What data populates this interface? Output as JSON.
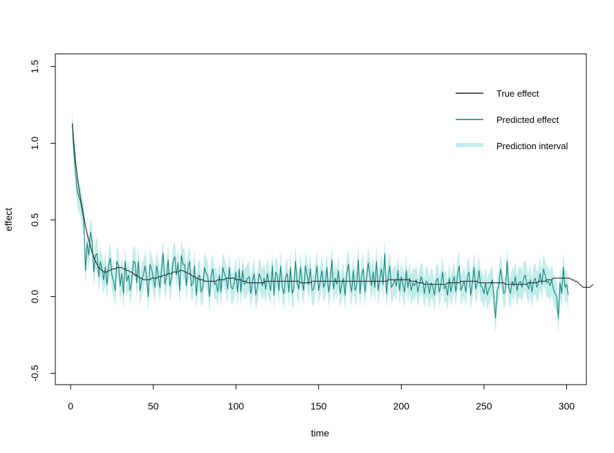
{
  "chart_data": {
    "type": "line",
    "xlabel": "time",
    "ylabel": "effect",
    "xlim": [
      1,
      300
    ],
    "ylim": [
      -0.5,
      1.5
    ],
    "xticks": [
      0,
      50,
      100,
      150,
      200,
      250,
      300
    ],
    "xtick_labels": [
      "0",
      "50",
      "100",
      "150",
      "200",
      "250",
      "300"
    ],
    "yticks": [
      -0.5,
      0.0,
      0.5,
      1.0,
      1.5
    ],
    "ytick_labels": [
      "-0.5",
      "0.0",
      "0.5",
      "1.0",
      "1.5"
    ],
    "grid": false,
    "legend_position": "top-right",
    "colors": {
      "true_effect": "#222222",
      "predicted_effect": "#0f8478",
      "prediction_interval": "#c4ecea"
    },
    "series": [
      {
        "name": "True effect",
        "x_start": 1,
        "step": 1,
        "values": [
          1.13,
          1.0,
          0.88,
          0.79,
          0.71,
          0.64,
          0.58,
          0.52,
          0.46,
          0.41,
          0.37,
          0.33,
          0.29,
          0.26,
          0.23,
          0.21,
          0.19,
          0.18,
          0.17,
          0.16,
          0.16,
          0.16,
          0.17,
          0.17,
          0.18,
          0.18,
          0.18,
          0.19,
          0.19,
          0.19,
          0.19,
          0.18,
          0.18,
          0.17,
          0.17,
          0.16,
          0.16,
          0.15,
          0.14,
          0.14,
          0.13,
          0.12,
          0.12,
          0.11,
          0.11,
          0.11,
          0.11,
          0.11,
          0.12,
          0.12,
          0.12,
          0.12,
          0.13,
          0.13,
          0.13,
          0.14,
          0.14,
          0.14,
          0.15,
          0.15,
          0.15,
          0.16,
          0.16,
          0.16,
          0.16,
          0.17,
          0.17,
          0.17,
          0.16,
          0.16,
          0.15,
          0.15,
          0.14,
          0.13,
          0.13,
          0.12,
          0.12,
          0.11,
          0.11,
          0.11,
          0.1,
          0.1,
          0.1,
          0.1,
          0.1,
          0.1,
          0.1,
          0.1,
          0.11,
          0.11,
          0.11,
          0.11,
          0.11,
          0.12,
          0.12,
          0.12,
          0.12,
          0.12,
          0.12,
          0.11,
          0.11,
          0.11,
          0.11,
          0.1,
          0.1,
          0.1,
          0.09,
          0.09,
          0.09,
          0.09,
          0.09,
          0.09,
          0.09,
          0.09,
          0.09,
          0.09,
          0.09,
          0.1,
          0.1,
          0.1,
          0.1,
          0.1,
          0.1,
          0.1,
          0.1,
          0.1,
          0.1,
          0.1,
          0.1,
          0.1,
          0.1,
          0.1,
          0.1,
          0.1,
          0.1,
          0.1,
          0.1,
          0.1,
          0.09,
          0.09,
          0.09,
          0.09,
          0.09,
          0.09,
          0.09,
          0.1,
          0.1,
          0.1,
          0.1,
          0.1,
          0.1,
          0.1,
          0.1,
          0.1,
          0.1,
          0.1,
          0.1,
          0.1,
          0.1,
          0.1,
          0.1,
          0.1,
          0.1,
          0.1,
          0.1,
          0.1,
          0.1,
          0.1,
          0.1,
          0.1,
          0.1,
          0.1,
          0.1,
          0.1,
          0.1,
          0.1,
          0.1,
          0.1,
          0.1,
          0.1,
          0.1,
          0.1,
          0.1,
          0.1,
          0.1,
          0.1,
          0.1,
          0.1,
          0.1,
          0.1,
          0.1,
          0.11,
          0.11,
          0.11,
          0.11,
          0.11,
          0.11,
          0.11,
          0.11,
          0.11,
          0.11,
          0.11,
          0.11,
          0.11,
          0.11,
          0.1,
          0.1,
          0.1,
          0.1,
          0.09,
          0.09,
          0.09,
          0.09,
          0.08,
          0.08,
          0.08,
          0.08,
          0.08,
          0.08,
          0.08,
          0.08,
          0.08,
          0.08,
          0.08,
          0.08,
          0.08,
          0.08,
          0.09,
          0.09,
          0.09,
          0.09,
          0.09,
          0.09,
          0.09,
          0.09,
          0.1,
          0.1,
          0.1,
          0.1,
          0.1,
          0.1,
          0.1,
          0.1,
          0.1,
          0.1,
          0.1,
          0.09,
          0.09,
          0.09,
          0.09,
          0.09,
          0.09,
          0.09,
          0.09,
          0.09,
          0.09,
          0.09,
          0.09,
          0.09,
          0.09,
          0.09,
          0.09,
          0.08,
          0.08,
          0.08,
          0.08,
          0.08,
          0.08,
          0.08,
          0.08,
          0.08,
          0.08,
          0.08,
          0.08,
          0.08,
          0.08,
          0.09,
          0.09,
          0.09,
          0.09,
          0.09,
          0.09,
          0.1,
          0.1,
          0.1,
          0.1,
          0.1,
          0.11,
          0.11,
          0.11,
          0.11,
          0.12,
          0.12,
          0.12,
          0.12,
          0.12,
          0.12,
          0.12,
          0.12,
          0.12,
          0.12,
          0.12,
          0.11,
          0.11,
          0.1,
          0.1,
          0.09,
          0.08,
          0.07,
          0.06,
          0.06,
          0.06,
          0.06,
          0.06,
          0.07,
          0.08
        ]
      },
      {
        "name": "Predicted effect",
        "x_start": 1,
        "step": 1,
        "values": [
          1.13,
          0.94,
          0.81,
          0.69,
          0.65,
          0.62,
          0.56,
          0.5,
          0.17,
          0.35,
          0.27,
          0.42,
          0.36,
          0.16,
          0.27,
          0.28,
          0.13,
          0.23,
          0.18,
          0.11,
          0.19,
          0.08,
          0.2,
          0.25,
          0.14,
          0.1,
          0.04,
          0.23,
          0.2,
          0.07,
          0.15,
          0.02,
          0.23,
          0.1,
          0.14,
          0.04,
          0.11,
          0.23,
          0.22,
          0.09,
          0.23,
          0.04,
          0.11,
          0.14,
          0.2,
          0.13,
          0.0,
          0.21,
          0.18,
          0.12,
          0.06,
          0.2,
          0.14,
          0.06,
          0.18,
          0.28,
          0.08,
          0.13,
          0.24,
          0.07,
          0.12,
          0.23,
          0.26,
          0.14,
          0.22,
          0.04,
          0.27,
          0.21,
          0.21,
          0.07,
          0.19,
          0.23,
          0.07,
          0.09,
          0.2,
          0.01,
          0.13,
          0.14,
          0.03,
          0.06,
          0.19,
          0.15,
          0.13,
          0.0,
          0.14,
          0.18,
          0.08,
          0.09,
          0.03,
          0.14,
          0.03,
          0.19,
          0.15,
          0.12,
          0.05,
          0.19,
          0.06,
          0.05,
          0.09,
          0.16,
          0.03,
          0.18,
          0.03,
          0.17,
          0.08,
          0.09,
          0.12,
          0.13,
          0.02,
          0.1,
          0.15,
          0.01,
          0.06,
          0.15,
          0.12,
          0.07,
          0.12,
          0.05,
          0.15,
          0.09,
          0.04,
          0.2,
          0.01,
          0.16,
          0.14,
          0.04,
          0.2,
          0.06,
          0.02,
          0.12,
          0.15,
          0.03,
          0.19,
          0.02,
          0.05,
          0.23,
          0.09,
          0.05,
          0.19,
          0.1,
          0.04,
          0.2,
          0.14,
          0.08,
          0.18,
          0.04,
          0.05,
          0.11,
          0.2,
          0.04,
          0.1,
          0.17,
          0.06,
          0.09,
          0.19,
          0.03,
          0.09,
          0.24,
          0.05,
          0.12,
          0.08,
          0.17,
          0.02,
          0.08,
          0.12,
          0.01,
          0.15,
          0.21,
          0.09,
          0.03,
          0.17,
          0.04,
          0.07,
          0.24,
          0.02,
          0.14,
          0.18,
          0.03,
          0.12,
          0.22,
          0.14,
          0.07,
          0.16,
          0.06,
          0.23,
          0.04,
          0.12,
          0.18,
          0.08,
          0.28,
          0.02,
          0.12,
          0.2,
          0.06,
          0.08,
          0.11,
          0.07,
          0.17,
          0.04,
          0.13,
          0.08,
          0.03,
          0.17,
          0.06,
          0.12,
          0.04,
          0.09,
          0.07,
          0.11,
          0.03,
          0.08,
          0.13,
          0.09,
          0.02,
          0.1,
          0.09,
          0.02,
          0.09,
          0.07,
          0.01,
          0.1,
          0.12,
          0.03,
          0.08,
          0.16,
          0.05,
          0.07,
          0.01,
          0.12,
          0.03,
          0.09,
          0.13,
          0.03,
          0.14,
          0.2,
          0.04,
          0.07,
          0.1,
          0.03,
          0.13,
          0.16,
          0.01,
          0.09,
          0.19,
          0.05,
          0.09,
          0.17,
          0.07,
          0.06,
          0.02,
          0.09,
          0.01,
          0.05,
          0.07,
          0.11,
          -0.01,
          -0.14,
          0.04,
          0.07,
          0.18,
          0.11,
          0.02,
          0.04,
          0.23,
          0.06,
          0.02,
          0.1,
          0.07,
          0.13,
          0.04,
          0.09,
          0.1,
          0.06,
          0.12,
          0.14,
          0.08,
          0.05,
          0.11,
          0.03,
          0.1,
          0.12,
          0.06,
          0.09,
          0.15,
          0.08,
          0.18,
          0.14,
          0.09,
          0.1,
          0.07,
          0.11,
          0.05,
          0.02,
          0.0,
          -0.14,
          0.09,
          0.02,
          0.19,
          0.06,
          0.08,
          0.01
        ]
      }
    ],
    "interval": {
      "name": "Prediction interval",
      "x_start": 1,
      "step": 1,
      "lower": [
        1.03,
        0.84,
        0.71,
        0.59,
        0.55,
        0.52,
        0.46,
        0.4,
        0.07,
        0.25,
        0.17,
        0.32,
        0.26,
        0.06,
        0.17,
        0.18,
        0.03,
        0.13,
        0.08,
        0.01,
        0.09,
        -0.02,
        0.1,
        0.15,
        0.04,
        0.0,
        -0.06,
        0.13,
        0.1,
        -0.03,
        0.05,
        -0.08,
        0.13,
        0.0,
        0.04,
        -0.06,
        0.01,
        0.13,
        0.12,
        -0.01,
        0.13,
        -0.06,
        0.01,
        0.04,
        0.1,
        0.03,
        -0.1,
        0.11,
        0.08,
        0.02,
        -0.04,
        0.1,
        0.04,
        -0.04,
        0.08,
        0.18,
        -0.02,
        0.03,
        0.14,
        -0.03,
        0.02,
        0.13,
        0.16,
        0.04,
        0.12,
        -0.06,
        0.17,
        0.11,
        0.11,
        -0.03,
        0.09,
        0.13,
        -0.03,
        -0.01,
        0.1,
        -0.09,
        0.03,
        0.04,
        -0.07,
        -0.04,
        0.09,
        0.05,
        0.03,
        -0.1,
        0.04,
        0.08,
        -0.02,
        -0.01,
        -0.07,
        0.04,
        -0.07,
        0.09,
        0.05,
        0.02,
        -0.05,
        0.09,
        -0.04,
        -0.05,
        -0.01,
        0.06,
        -0.07,
        0.08,
        -0.07,
        0.07,
        -0.02,
        -0.01,
        0.02,
        0.03,
        -0.08,
        0.0,
        0.05,
        -0.09,
        -0.04,
        0.05,
        0.02,
        -0.03,
        0.02,
        -0.05,
        0.05,
        -0.01,
        -0.06,
        0.1,
        -0.09,
        0.06,
        0.04,
        -0.06,
        0.1,
        -0.04,
        -0.08,
        0.02,
        0.05,
        -0.07,
        0.09,
        -0.08,
        -0.05,
        0.13,
        -0.01,
        -0.05,
        0.09,
        0.0,
        -0.06,
        0.1,
        0.04,
        -0.02,
        0.08,
        -0.06,
        -0.05,
        0.01,
        0.1,
        -0.06,
        0.0,
        0.07,
        -0.04,
        -0.01,
        0.09,
        -0.07,
        -0.01,
        0.14,
        -0.05,
        0.02,
        -0.02,
        0.07,
        -0.08,
        -0.02,
        0.02,
        -0.09,
        0.05,
        0.11,
        -0.01,
        -0.07,
        0.07,
        -0.06,
        -0.03,
        0.14,
        -0.08,
        0.04,
        0.08,
        -0.07,
        0.02,
        0.12,
        0.04,
        -0.03,
        0.06,
        -0.04,
        0.13,
        -0.06,
        0.02,
        0.08,
        -0.02,
        0.18,
        -0.08,
        0.02,
        0.1,
        -0.04,
        -0.02,
        0.01,
        -0.03,
        0.07,
        -0.06,
        0.03,
        -0.02,
        -0.07,
        0.07,
        -0.04,
        0.02,
        -0.06,
        -0.01,
        -0.03,
        0.01,
        -0.07,
        -0.02,
        0.03,
        -0.01,
        -0.08,
        0.0,
        -0.01,
        -0.08,
        -0.01,
        -0.03,
        -0.09,
        0.0,
        0.02,
        -0.07,
        -0.02,
        0.06,
        -0.05,
        -0.03,
        -0.09,
        0.02,
        -0.07,
        -0.01,
        0.03,
        -0.07,
        0.04,
        0.1,
        -0.06,
        -0.03,
        0.0,
        -0.07,
        0.03,
        0.06,
        -0.09,
        -0.01,
        0.09,
        -0.05,
        -0.01,
        0.07,
        -0.03,
        -0.04,
        -0.08,
        -0.01,
        -0.09,
        -0.05,
        -0.03,
        0.01,
        -0.11,
        -0.24,
        -0.06,
        -0.03,
        0.08,
        0.01,
        -0.08,
        -0.06,
        0.13,
        -0.04,
        -0.08,
        0.0,
        -0.03,
        0.03,
        -0.06,
        -0.01,
        0.0,
        -0.04,
        0.02,
        0.04,
        -0.02,
        -0.05,
        0.01,
        -0.07,
        0.0,
        0.02,
        -0.04,
        -0.01,
        0.05,
        -0.02,
        0.08,
        0.04,
        -0.01,
        0.0,
        -0.03,
        0.01,
        -0.05,
        -0.08,
        -0.1,
        -0.24,
        -0.01,
        -0.08,
        0.09,
        -0.04,
        -0.02,
        -0.09
      ],
      "upper": [
        1.23,
        1.04,
        0.91,
        0.79,
        0.75,
        0.72,
        0.66,
        0.6,
        0.27,
        0.45,
        0.37,
        0.52,
        0.46,
        0.26,
        0.37,
        0.38,
        0.23,
        0.33,
        0.28,
        0.21,
        0.29,
        0.18,
        0.3,
        0.35,
        0.24,
        0.2,
        0.14,
        0.33,
        0.3,
        0.17,
        0.25,
        0.12,
        0.33,
        0.2,
        0.24,
        0.14,
        0.21,
        0.33,
        0.32,
        0.19,
        0.33,
        0.14,
        0.21,
        0.24,
        0.3,
        0.23,
        0.1,
        0.31,
        0.28,
        0.22,
        0.16,
        0.3,
        0.24,
        0.16,
        0.28,
        0.38,
        0.18,
        0.23,
        0.34,
        0.17,
        0.22,
        0.33,
        0.36,
        0.24,
        0.32,
        0.14,
        0.37,
        0.31,
        0.31,
        0.17,
        0.29,
        0.33,
        0.17,
        0.19,
        0.3,
        0.11,
        0.23,
        0.24,
        0.13,
        0.16,
        0.29,
        0.25,
        0.23,
        0.1,
        0.24,
        0.28,
        0.18,
        0.19,
        0.13,
        0.24,
        0.13,
        0.29,
        0.25,
        0.22,
        0.15,
        0.29,
        0.16,
        0.15,
        0.19,
        0.26,
        0.13,
        0.28,
        0.13,
        0.27,
        0.18,
        0.19,
        0.22,
        0.23,
        0.12,
        0.2,
        0.25,
        0.11,
        0.16,
        0.25,
        0.22,
        0.17,
        0.22,
        0.15,
        0.25,
        0.19,
        0.14,
        0.3,
        0.11,
        0.26,
        0.24,
        0.14,
        0.3,
        0.16,
        0.12,
        0.22,
        0.25,
        0.13,
        0.29,
        0.12,
        0.15,
        0.33,
        0.19,
        0.15,
        0.29,
        0.2,
        0.14,
        0.3,
        0.24,
        0.18,
        0.28,
        0.14,
        0.15,
        0.21,
        0.3,
        0.14,
        0.2,
        0.27,
        0.16,
        0.19,
        0.29,
        0.13,
        0.19,
        0.34,
        0.15,
        0.22,
        0.18,
        0.27,
        0.12,
        0.18,
        0.22,
        0.11,
        0.25,
        0.31,
        0.19,
        0.13,
        0.27,
        0.14,
        0.17,
        0.34,
        0.12,
        0.24,
        0.28,
        0.13,
        0.22,
        0.32,
        0.24,
        0.17,
        0.26,
        0.16,
        0.33,
        0.14,
        0.22,
        0.28,
        0.18,
        0.38,
        0.12,
        0.22,
        0.3,
        0.16,
        0.18,
        0.21,
        0.17,
        0.27,
        0.14,
        0.23,
        0.18,
        0.13,
        0.27,
        0.16,
        0.22,
        0.14,
        0.19,
        0.17,
        0.21,
        0.13,
        0.18,
        0.23,
        0.19,
        0.12,
        0.2,
        0.19,
        0.12,
        0.19,
        0.17,
        0.11,
        0.2,
        0.22,
        0.13,
        0.18,
        0.26,
        0.15,
        0.17,
        0.11,
        0.22,
        0.13,
        0.19,
        0.23,
        0.13,
        0.24,
        0.3,
        0.14,
        0.17,
        0.2,
        0.13,
        0.23,
        0.26,
        0.11,
        0.19,
        0.29,
        0.15,
        0.19,
        0.27,
        0.17,
        0.16,
        0.12,
        0.19,
        0.11,
        0.15,
        0.17,
        0.21,
        0.09,
        -0.04,
        0.14,
        0.17,
        0.28,
        0.21,
        0.12,
        0.14,
        0.33,
        0.16,
        0.12,
        0.2,
        0.17,
        0.23,
        0.14,
        0.19,
        0.2,
        0.16,
        0.22,
        0.24,
        0.18,
        0.15,
        0.21,
        0.13,
        0.2,
        0.22,
        0.16,
        0.19,
        0.25,
        0.18,
        0.28,
        0.24,
        0.19,
        0.2,
        0.17,
        0.21,
        0.15,
        0.12,
        0.1,
        -0.04,
        0.19,
        0.12,
        0.29,
        0.16,
        0.18,
        0.11
      ]
    }
  }
}
